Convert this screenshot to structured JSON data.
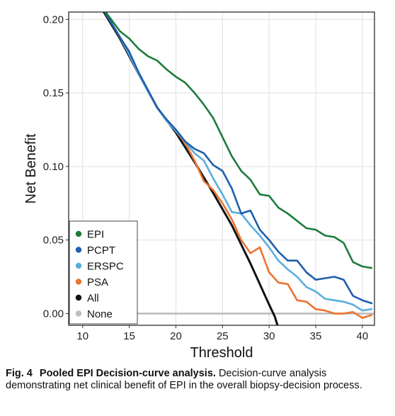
{
  "chart_data": {
    "type": "line",
    "xlabel": "Threshold",
    "ylabel": "Net Benefit",
    "xlim": [
      8.5,
      41.3
    ],
    "ylim": [
      -0.008,
      0.205
    ],
    "xticks": [
      10,
      15,
      20,
      25,
      30,
      35,
      40
    ],
    "yticks": [
      0.0,
      0.05,
      0.1,
      0.15,
      0.2
    ],
    "ytick_labels": [
      "0.00",
      "0.05",
      "0.10",
      "0.15",
      "0.20"
    ],
    "grid": true,
    "legend_position": "bottom-left",
    "series": [
      {
        "name": "EPI",
        "color": "#1e7b3c",
        "x": [
          12,
          14,
          15,
          16,
          17,
          18,
          19,
          20,
          21,
          22,
          23,
          24,
          25,
          26,
          27,
          28,
          29,
          30,
          31,
          32,
          33,
          34,
          35,
          36,
          37,
          38,
          39,
          40,
          41
        ],
        "y": [
          0.209,
          0.192,
          0.187,
          0.18,
          0.175,
          0.172,
          0.166,
          0.161,
          0.157,
          0.15,
          0.142,
          0.133,
          0.12,
          0.107,
          0.097,
          0.091,
          0.081,
          0.08,
          0.072,
          0.068,
          0.063,
          0.058,
          0.057,
          0.053,
          0.052,
          0.048,
          0.035,
          0.032,
          0.031
        ]
      },
      {
        "name": "PCPT",
        "color": "#1f5fad",
        "x": [
          12,
          14,
          15,
          16,
          17,
          18,
          19,
          20,
          21,
          22,
          23,
          24,
          25,
          26,
          27,
          28,
          29,
          30,
          31,
          32,
          33,
          34,
          35,
          36,
          37,
          38,
          39,
          40,
          41
        ],
        "y": [
          0.209,
          0.188,
          0.178,
          0.164,
          0.152,
          0.14,
          0.132,
          0.125,
          0.117,
          0.112,
          0.109,
          0.101,
          0.097,
          0.085,
          0.068,
          0.07,
          0.057,
          0.05,
          0.042,
          0.036,
          0.036,
          0.028,
          0.023,
          0.024,
          0.025,
          0.023,
          0.012,
          0.009,
          0.007
        ]
      },
      {
        "name": "ERSPC",
        "color": "#5aaede",
        "x": [
          12,
          14,
          15,
          16,
          17,
          18,
          19,
          20,
          21,
          22,
          23,
          24,
          25,
          26,
          27,
          28,
          29,
          30,
          31,
          32,
          33,
          34,
          35,
          36,
          37,
          38,
          39,
          40,
          41
        ],
        "y": [
          0.209,
          0.188,
          0.176,
          0.163,
          0.151,
          0.14,
          0.131,
          0.124,
          0.117,
          0.109,
          0.104,
          0.092,
          0.081,
          0.069,
          0.068,
          0.06,
          0.053,
          0.045,
          0.036,
          0.03,
          0.025,
          0.018,
          0.015,
          0.01,
          0.009,
          0.008,
          0.006,
          0.002,
          0.003
        ]
      },
      {
        "name": "PSA",
        "color": "#ec7331",
        "x": [
          12,
          14,
          15,
          16,
          17,
          18,
          19,
          20,
          21,
          22,
          23,
          24,
          25,
          26,
          27,
          28,
          29,
          30,
          31,
          32,
          33,
          34,
          35,
          36,
          37,
          38,
          39,
          40,
          41
        ],
        "y": [
          0.209,
          0.188,
          0.176,
          0.163,
          0.151,
          0.14,
          0.131,
          0.124,
          0.116,
          0.104,
          0.09,
          0.084,
          0.075,
          0.064,
          0.05,
          0.041,
          0.045,
          0.028,
          0.021,
          0.02,
          0.009,
          0.008,
          0.003,
          0.002,
          0.0,
          0.0,
          0.001,
          -0.003,
          -0.001
        ]
      },
      {
        "name": "All",
        "color": "#111111",
        "x": [
          11.6,
          14,
          16,
          18,
          20,
          22,
          24,
          26,
          28,
          30,
          30.6,
          30.9
        ],
        "y": [
          0.212,
          0.187,
          0.163,
          0.14,
          0.123,
          0.103,
          0.082,
          0.06,
          0.034,
          0.006,
          -0.002,
          -0.008
        ]
      },
      {
        "name": "None",
        "color": "#bdbdbd",
        "x": [
          8.5,
          41.3
        ],
        "y": [
          0,
          0
        ]
      }
    ]
  },
  "caption": {
    "label": "Fig. 4",
    "title": "Pooled EPI Decision-curve analysis.",
    "text": "Decision-curve analysis demonstrating net clinical benefit of EPI in the overall biopsy-decision process."
  }
}
